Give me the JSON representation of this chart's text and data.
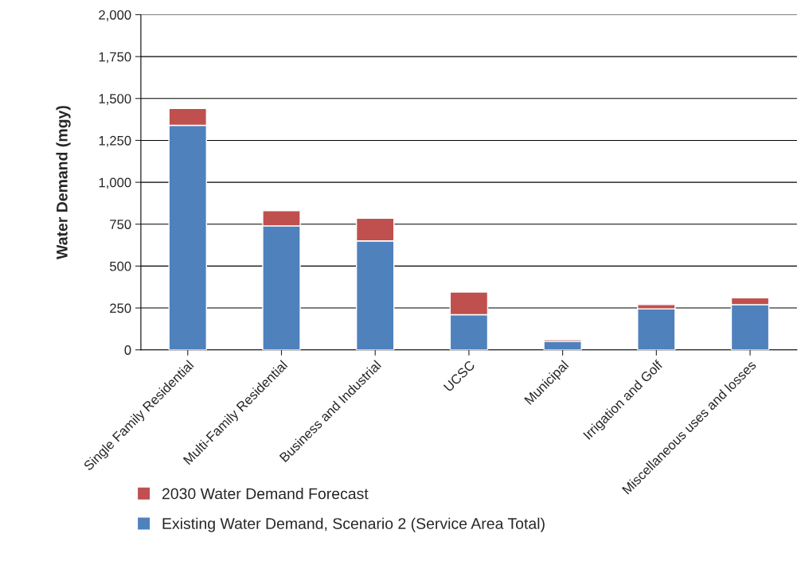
{
  "chart_data": {
    "type": "bar",
    "stacked": true,
    "ylabel": "Water Demand (mgy)",
    "categories": [
      "Single Family Residential",
      "Multi-Family Residential",
      "Business and Industrial",
      "UCSC",
      "Municipal",
      "Irrigation and Golf",
      "Miscellaneous uses and losses"
    ],
    "series": [
      {
        "name": "Existing Water Demand, Scenario 2 (Service Area Total)",
        "color": "#4f81bd",
        "values": [
          1340,
          740,
          650,
          210,
          50,
          245,
          270
        ]
      },
      {
        "name": "2030 Water Demand Forecast",
        "color": "#c0504d",
        "values": [
          100,
          90,
          135,
          135,
          10,
          25,
          40
        ]
      }
    ],
    "ylim": [
      0,
      2000
    ],
    "yticks": [
      0,
      250,
      500,
      750,
      {
        "value": 1000,
        "label": "1,000"
      },
      {
        "value": 1250,
        "label": "1,250"
      },
      {
        "value": 1500,
        "label": "1,500"
      },
      {
        "value": 1750,
        "label": "1,750"
      },
      {
        "value": 2000,
        "label": "2,000"
      }
    ],
    "grid": "y",
    "legend": "bottom"
  }
}
